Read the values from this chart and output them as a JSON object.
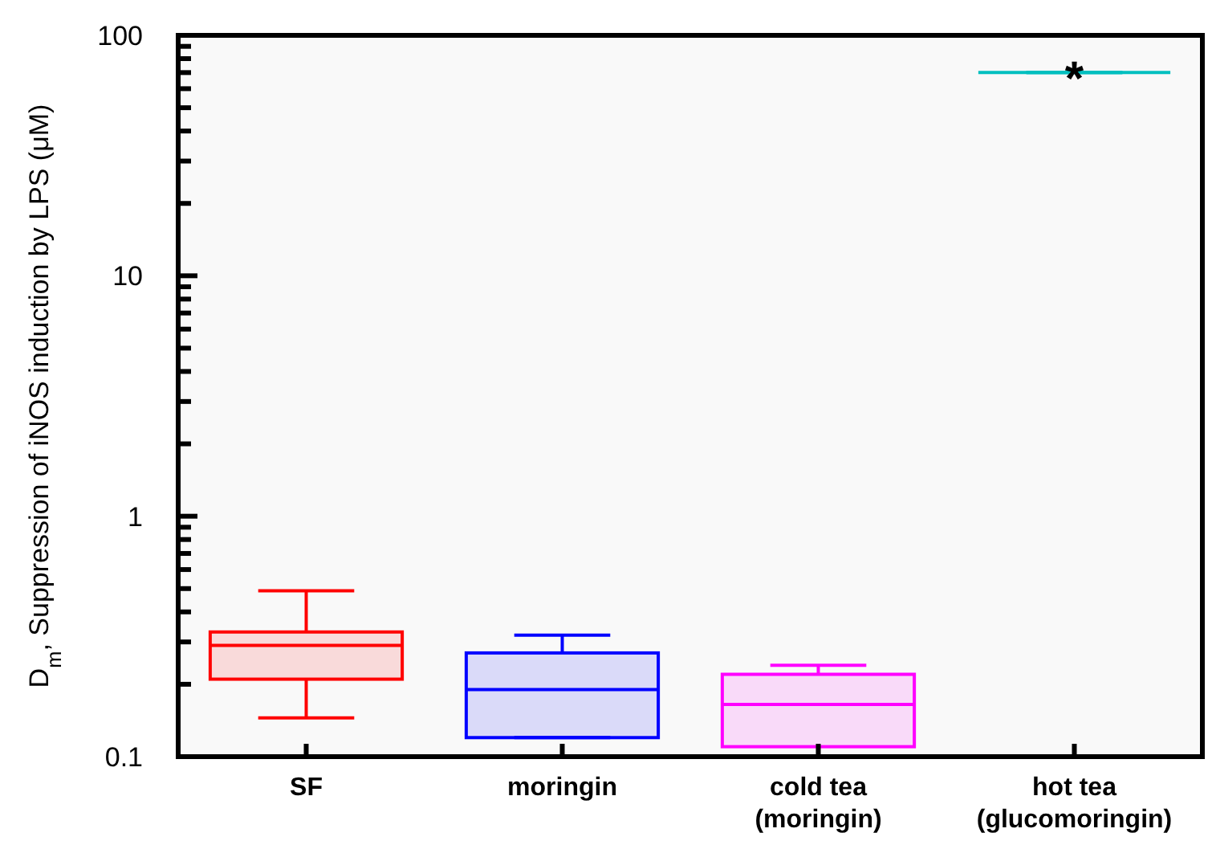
{
  "chart_data": {
    "type": "box",
    "ylabel": "D$_{m}$, Suppression of iNOS induction by LPS (μM)",
    "categories": [
      "SF",
      "moringin",
      "cold tea\n(moringin)",
      "hot tea\n(glucomoringin)"
    ],
    "colors": [
      "#ff0000",
      "#0000ff",
      "#ff00ff",
      "#00bfbf"
    ],
    "boxes": [
      {
        "low": 0.145,
        "q1": 0.21,
        "median": 0.29,
        "q3": 0.33,
        "high": 0.49
      },
      {
        "low": 0.12,
        "q1": 0.12,
        "median": 0.19,
        "q3": 0.27,
        "high": 0.32
      },
      {
        "low": 0.1,
        "q1": 0.11,
        "median": 0.165,
        "q3": 0.22,
        "high": 0.24
      },
      {
        "low": 70,
        "q1": 70,
        "median": 70,
        "q3": 70,
        "high": 70
      }
    ],
    "annotations": [
      {
        "text": "*",
        "x": "hot tea\n(glucomoringin)",
        "y": 70
      }
    ],
    "log": true,
    "ylim": [
      0.1,
      100
    ],
    "yticks": [
      0.1,
      {
        "value": 0.2,
        "label": null
      },
      {
        "value": 0.3,
        "label": null
      },
      {
        "value": 0.4,
        "label": null
      },
      {
        "value": 0.5,
        "label": null
      },
      {
        "value": 0.6,
        "label": null
      },
      {
        "value": 0.7,
        "label": null
      },
      {
        "value": 0.8,
        "label": null
      },
      {
        "value": 0.9,
        "label": null
      },
      1,
      {
        "value": 2,
        "label": null
      },
      {
        "value": 3,
        "label": null
      },
      {
        "value": 4,
        "label": null
      },
      {
        "value": 5,
        "label": null
      },
      {
        "value": 6,
        "label": null
      },
      {
        "value": 7,
        "label": null
      },
      {
        "value": 8,
        "label": null
      },
      {
        "value": 9,
        "label": null
      },
      10,
      {
        "value": 20,
        "label": null
      },
      {
        "value": 30,
        "label": null
      },
      {
        "value": 40,
        "label": null
      },
      {
        "value": 50,
        "label": null
      },
      {
        "value": 60,
        "label": null
      },
      {
        "value": 70,
        "label": null
      },
      {
        "value": 80,
        "label": null
      },
      {
        "value": 90,
        "label": null
      },
      100
    ]
  }
}
